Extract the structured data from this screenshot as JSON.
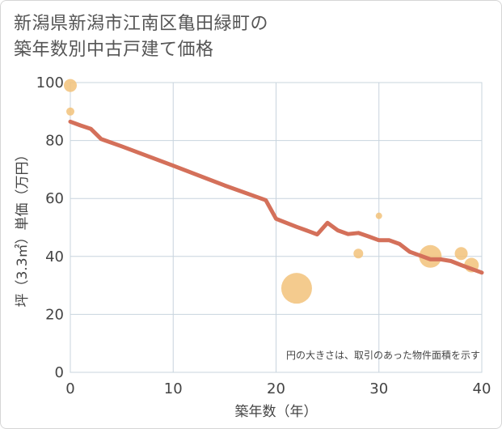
{
  "title_line1": "新潟県新潟市江南区亀田緑町の",
  "title_line2": "築年数別中古戸建て価格",
  "colors": {
    "line": "#d4705a",
    "bubble": "#f2c27a",
    "grid": "#c8d4de",
    "plot_border": "#c8d4de"
  },
  "chart_data": {
    "type": "line",
    "xlabel": "築年数（年）",
    "ylabel": "坪（3.3㎡）単価（万円）",
    "xlim": [
      0,
      40
    ],
    "ylim": [
      0,
      100
    ],
    "xticks": [
      0,
      10,
      20,
      30,
      40
    ],
    "yticks": [
      0,
      20,
      40,
      60,
      80,
      100
    ],
    "grid": true,
    "annotation": "円の大きさは、取引のあった物件面積を示す",
    "series": [
      {
        "values": [
          [
            0,
            86.5
          ],
          [
            1,
            85.2
          ],
          [
            2,
            84.0
          ],
          [
            3,
            80.5
          ],
          [
            5,
            78.0
          ],
          [
            10,
            71.3
          ],
          [
            15,
            64.5
          ],
          [
            19,
            59.4
          ],
          [
            20,
            53.0
          ],
          [
            21,
            51.6
          ],
          [
            22,
            50.2
          ],
          [
            23,
            48.9
          ],
          [
            24,
            47.6
          ],
          [
            25,
            51.6
          ],
          [
            26,
            49.0
          ],
          [
            27,
            47.7
          ],
          [
            28,
            48.1
          ],
          [
            29,
            46.9
          ],
          [
            30,
            45.6
          ],
          [
            31,
            45.6
          ],
          [
            32,
            44.3
          ],
          [
            33,
            41.6
          ],
          [
            34,
            40.3
          ],
          [
            35,
            39.0
          ],
          [
            36,
            39.0
          ],
          [
            37,
            38.4
          ],
          [
            38,
            37.0
          ],
          [
            39,
            35.7
          ],
          [
            40,
            34.4
          ]
        ]
      }
    ],
    "bubbles": [
      {
        "x": 0,
        "y": 99,
        "size": 8
      },
      {
        "x": 0,
        "y": 90,
        "size": 5
      },
      {
        "x": 22,
        "y": 29,
        "size": 19
      },
      {
        "x": 28,
        "y": 41,
        "size": 6
      },
      {
        "x": 30,
        "y": 54,
        "size": 4
      },
      {
        "x": 35,
        "y": 40,
        "size": 14
      },
      {
        "x": 38,
        "y": 41,
        "size": 8
      },
      {
        "x": 39,
        "y": 37,
        "size": 9
      }
    ]
  }
}
